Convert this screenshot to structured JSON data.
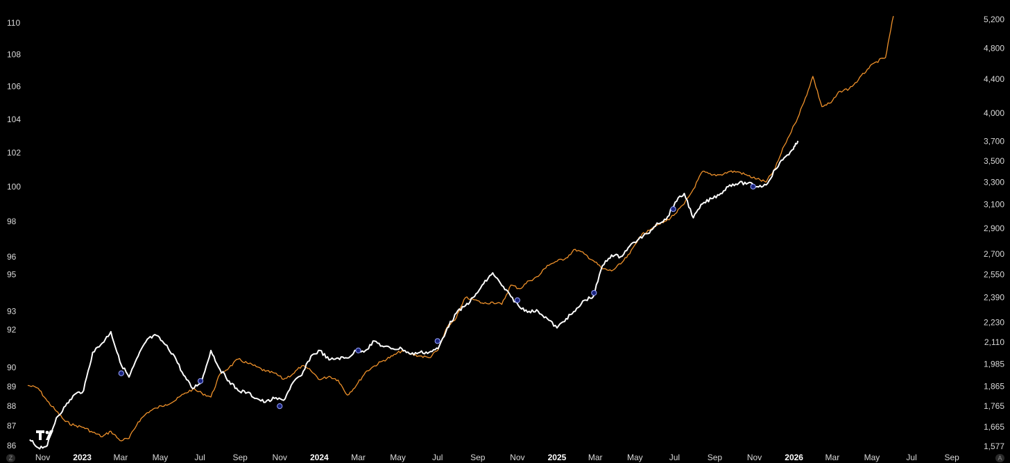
{
  "chart_data": {
    "type": "line",
    "title": "",
    "left_axis": {
      "scale": "log",
      "ylim": [
        86,
        110.2
      ],
      "ticks": [
        "86",
        "87",
        "88",
        "89",
        "90",
        "92",
        "93",
        "95",
        "96",
        "98",
        "100",
        "102",
        "104",
        "106",
        "108",
        "110"
      ]
    },
    "right_axis": {
      "scale": "log",
      "ylim": [
        1577,
        5300
      ],
      "ticks": [
        "1,577",
        "1,665",
        "1,765",
        "1,865",
        "1,985",
        "2,110",
        "2,230",
        "2,390",
        "2,550",
        "2,700",
        "2,900",
        "3,100",
        "3,300",
        "3,500",
        "3,700",
        "4,000",
        "4,400",
        "4,800",
        "5,200"
      ]
    },
    "x_axis": {
      "range": [
        "2022-10-09",
        "2026-10-20"
      ],
      "ticks": [
        {
          "date": "2022-11-01",
          "label": "Nov",
          "bold": false
        },
        {
          "date": "2023-01-01",
          "label": "2023",
          "bold": true
        },
        {
          "date": "2023-03-01",
          "label": "Mar",
          "bold": false
        },
        {
          "date": "2023-05-01",
          "label": "May",
          "bold": false
        },
        {
          "date": "2023-07-01",
          "label": "Jul",
          "bold": false
        },
        {
          "date": "2023-09-01",
          "label": "Sep",
          "bold": false
        },
        {
          "date": "2023-11-01",
          "label": "Nov",
          "bold": false
        },
        {
          "date": "2024-01-01",
          "label": "2024",
          "bold": true
        },
        {
          "date": "2024-03-01",
          "label": "Mar",
          "bold": false
        },
        {
          "date": "2024-05-01",
          "label": "May",
          "bold": false
        },
        {
          "date": "2024-07-01",
          "label": "Jul",
          "bold": false
        },
        {
          "date": "2024-09-01",
          "label": "Sep",
          "bold": false
        },
        {
          "date": "2024-11-01",
          "label": "Nov",
          "bold": false
        },
        {
          "date": "2025-01-01",
          "label": "2025",
          "bold": true
        },
        {
          "date": "2025-03-01",
          "label": "Mar",
          "bold": false
        },
        {
          "date": "2025-05-01",
          "label": "May",
          "bold": false
        },
        {
          "date": "2025-07-01",
          "label": "Jul",
          "bold": false
        },
        {
          "date": "2025-09-01",
          "label": "Sep",
          "bold": false
        },
        {
          "date": "2025-11-01",
          "label": "Nov",
          "bold": false
        },
        {
          "date": "2026-01-01",
          "label": "2026",
          "bold": true
        },
        {
          "date": "2026-03-01",
          "label": "Mar",
          "bold": false
        },
        {
          "date": "2026-05-01",
          "label": "May",
          "bold": false
        },
        {
          "date": "2026-07-01",
          "label": "Jul",
          "bold": false
        },
        {
          "date": "2026-09-01",
          "label": "Sep",
          "bold": false
        }
      ]
    },
    "series": [
      {
        "axis": "right",
        "color": "#f0922b",
        "points": [
          [
            "2022-10-09",
            1870
          ],
          [
            "2022-10-25",
            1855
          ],
          [
            "2022-11-08",
            1790
          ],
          [
            "2022-11-22",
            1740
          ],
          [
            "2022-12-06",
            1690
          ],
          [
            "2022-12-20",
            1672
          ],
          [
            "2023-01-03",
            1663
          ],
          [
            "2023-01-17",
            1640
          ],
          [
            "2023-02-01",
            1620
          ],
          [
            "2023-02-14",
            1645
          ],
          [
            "2023-02-28",
            1603
          ],
          [
            "2023-03-14",
            1612
          ],
          [
            "2023-03-28",
            1688
          ],
          [
            "2023-04-11",
            1733
          ],
          [
            "2023-04-25",
            1755
          ],
          [
            "2023-05-09",
            1772
          ],
          [
            "2023-05-23",
            1790
          ],
          [
            "2023-06-06",
            1825
          ],
          [
            "2023-06-20",
            1850
          ],
          [
            "2023-07-04",
            1830
          ],
          [
            "2023-07-18",
            1810
          ],
          [
            "2023-08-01",
            1930
          ],
          [
            "2023-08-15",
            1965
          ],
          [
            "2023-08-29",
            2012
          ],
          [
            "2023-09-12",
            1990
          ],
          [
            "2023-09-26",
            1970
          ],
          [
            "2023-10-10",
            1945
          ],
          [
            "2023-10-24",
            1935
          ],
          [
            "2023-11-07",
            1902
          ],
          [
            "2023-11-21",
            1930
          ],
          [
            "2023-12-05",
            1975
          ],
          [
            "2023-12-19",
            1948
          ],
          [
            "2024-01-02",
            1900
          ],
          [
            "2024-01-16",
            1918
          ],
          [
            "2024-01-30",
            1898
          ],
          [
            "2024-02-13",
            1820
          ],
          [
            "2024-02-27",
            1870
          ],
          [
            "2024-03-12",
            1940
          ],
          [
            "2024-03-26",
            1975
          ],
          [
            "2024-04-09",
            2005
          ],
          [
            "2024-04-23",
            2030
          ],
          [
            "2024-05-07",
            2060
          ],
          [
            "2024-05-21",
            2040
          ],
          [
            "2024-06-04",
            2030
          ],
          [
            "2024-06-18",
            2020
          ],
          [
            "2024-07-02",
            2065
          ],
          [
            "2024-07-16",
            2200
          ],
          [
            "2024-07-30",
            2260
          ],
          [
            "2024-08-13",
            2390
          ],
          [
            "2024-08-27",
            2375
          ],
          [
            "2024-09-10",
            2350
          ],
          [
            "2024-09-24",
            2360
          ],
          [
            "2024-10-08",
            2345
          ],
          [
            "2024-10-22",
            2475
          ],
          [
            "2024-11-05",
            2450
          ],
          [
            "2024-11-19",
            2505
          ],
          [
            "2024-12-03",
            2535
          ],
          [
            "2024-12-17",
            2615
          ],
          [
            "2025-01-01",
            2645
          ],
          [
            "2025-01-15",
            2670
          ],
          [
            "2025-01-29",
            2735
          ],
          [
            "2025-02-12",
            2700
          ],
          [
            "2025-02-26",
            2650
          ],
          [
            "2025-03-12",
            2590
          ],
          [
            "2025-03-26",
            2575
          ],
          [
            "2025-04-09",
            2625
          ],
          [
            "2025-04-23",
            2700
          ],
          [
            "2025-05-07",
            2825
          ],
          [
            "2025-05-21",
            2885
          ],
          [
            "2025-06-04",
            2925
          ],
          [
            "2025-06-18",
            2960
          ],
          [
            "2025-07-02",
            3020
          ],
          [
            "2025-07-16",
            3105
          ],
          [
            "2025-07-30",
            3235
          ],
          [
            "2025-08-13",
            3400
          ],
          [
            "2025-08-27",
            3365
          ],
          [
            "2025-09-10",
            3370
          ],
          [
            "2025-09-24",
            3400
          ],
          [
            "2025-10-08",
            3395
          ],
          [
            "2025-10-22",
            3360
          ],
          [
            "2025-11-05",
            3330
          ],
          [
            "2025-11-19",
            3300
          ],
          [
            "2025-12-03",
            3430
          ],
          [
            "2025-12-17",
            3655
          ],
          [
            "2026-01-02",
            3880
          ],
          [
            "2026-01-16",
            4120
          ],
          [
            "2026-01-30",
            4435
          ],
          [
            "2026-02-13",
            4075
          ],
          [
            "2026-02-27",
            4120
          ],
          [
            "2026-03-13",
            4255
          ],
          [
            "2026-03-27",
            4285
          ],
          [
            "2026-04-10",
            4390
          ],
          [
            "2026-04-24",
            4525
          ],
          [
            "2026-05-08",
            4620
          ],
          [
            "2026-05-22",
            4675
          ],
          [
            "2026-06-03",
            5250
          ]
        ]
      },
      {
        "axis": "left",
        "color": "#ffffff",
        "points": [
          [
            "2022-10-12",
            86.3
          ],
          [
            "2022-10-25",
            85.9
          ],
          [
            "2022-11-08",
            86.0
          ],
          [
            "2022-11-22",
            87.4
          ],
          [
            "2022-12-06",
            88.0
          ],
          [
            "2022-12-20",
            88.6
          ],
          [
            "2023-01-03",
            88.8
          ],
          [
            "2023-01-17",
            90.8
          ],
          [
            "2023-02-01",
            91.3
          ],
          [
            "2023-02-14",
            91.9
          ],
          [
            "2023-02-28",
            90.3
          ],
          [
            "2023-03-14",
            89.5
          ],
          [
            "2023-03-28",
            90.6
          ],
          [
            "2023-04-11",
            91.5
          ],
          [
            "2023-04-25",
            91.7
          ],
          [
            "2023-05-09",
            91.2
          ],
          [
            "2023-05-23",
            90.6
          ],
          [
            "2023-06-06",
            89.6
          ],
          [
            "2023-06-20",
            88.9
          ],
          [
            "2023-07-04",
            89.3
          ],
          [
            "2023-07-18",
            90.9
          ],
          [
            "2023-08-01",
            89.9
          ],
          [
            "2023-08-15",
            89.3
          ],
          [
            "2023-08-29",
            88.8
          ],
          [
            "2023-09-12",
            88.7
          ],
          [
            "2023-09-26",
            88.4
          ],
          [
            "2023-10-10",
            88.2
          ],
          [
            "2023-10-24",
            88.4
          ],
          [
            "2023-11-07",
            88.3
          ],
          [
            "2023-11-21",
            89.2
          ],
          [
            "2023-12-05",
            89.6
          ],
          [
            "2023-12-19",
            90.6
          ],
          [
            "2024-01-02",
            90.9
          ],
          [
            "2024-01-16",
            90.4
          ],
          [
            "2024-01-30",
            90.5
          ],
          [
            "2024-02-13",
            90.5
          ],
          [
            "2024-02-27",
            90.9
          ],
          [
            "2024-03-12",
            90.9
          ],
          [
            "2024-03-26",
            91.4
          ],
          [
            "2024-04-09",
            91.1
          ],
          [
            "2024-04-23",
            91.0
          ],
          [
            "2024-05-07",
            91.0
          ],
          [
            "2024-05-21",
            90.7
          ],
          [
            "2024-06-04",
            90.8
          ],
          [
            "2024-06-18",
            90.8
          ],
          [
            "2024-07-02",
            91.0
          ],
          [
            "2024-07-16",
            92.1
          ],
          [
            "2024-07-30",
            92.9
          ],
          [
            "2024-08-13",
            93.3
          ],
          [
            "2024-08-27",
            93.8
          ],
          [
            "2024-09-10",
            94.5
          ],
          [
            "2024-09-24",
            95.1
          ],
          [
            "2024-10-08",
            94.4
          ],
          [
            "2024-10-22",
            93.8
          ],
          [
            "2024-11-05",
            93.2
          ],
          [
            "2024-11-19",
            93.0
          ],
          [
            "2024-12-03",
            93.0
          ],
          [
            "2024-12-17",
            92.6
          ],
          [
            "2025-01-01",
            92.1
          ],
          [
            "2025-01-15",
            92.6
          ],
          [
            "2025-01-29",
            93.0
          ],
          [
            "2025-02-12",
            93.6
          ],
          [
            "2025-02-26",
            93.8
          ],
          [
            "2025-03-12",
            95.5
          ],
          [
            "2025-03-26",
            96.1
          ],
          [
            "2025-04-09",
            96.0
          ],
          [
            "2025-04-23",
            96.6
          ],
          [
            "2025-05-07",
            97.0
          ],
          [
            "2025-05-21",
            97.3
          ],
          [
            "2025-06-04",
            97.9
          ],
          [
            "2025-06-18",
            98.1
          ],
          [
            "2025-07-02",
            99.1
          ],
          [
            "2025-07-16",
            99.6
          ],
          [
            "2025-07-30",
            98.2
          ],
          [
            "2025-08-13",
            99.0
          ],
          [
            "2025-08-27",
            99.3
          ],
          [
            "2025-09-10",
            99.6
          ],
          [
            "2025-09-24",
            100.1
          ],
          [
            "2025-10-08",
            100.2
          ],
          [
            "2025-10-22",
            100.2
          ],
          [
            "2025-11-05",
            100.0
          ],
          [
            "2025-11-19",
            100.1
          ],
          [
            "2025-12-03",
            101.0
          ],
          [
            "2025-12-17",
            101.7
          ],
          [
            "2025-12-31",
            102.2
          ],
          [
            "2026-01-07",
            102.7
          ]
        ]
      }
    ],
    "markers": [
      {
        "date": "2023-03-02",
        "value": 89.7
      },
      {
        "date": "2023-07-02",
        "value": 89.3
      },
      {
        "date": "2023-11-01",
        "value": 88.0
      },
      {
        "date": "2024-03-01",
        "value": 90.9
      },
      {
        "date": "2024-07-01",
        "value": 91.4
      },
      {
        "date": "2024-11-01",
        "value": 93.6
      },
      {
        "date": "2025-02-27",
        "value": 94.0
      },
      {
        "date": "2025-06-29",
        "value": 98.7
      },
      {
        "date": "2025-10-30",
        "value": 100.0
      }
    ],
    "corner_labels": {
      "left": "Z",
      "right": "A"
    }
  }
}
